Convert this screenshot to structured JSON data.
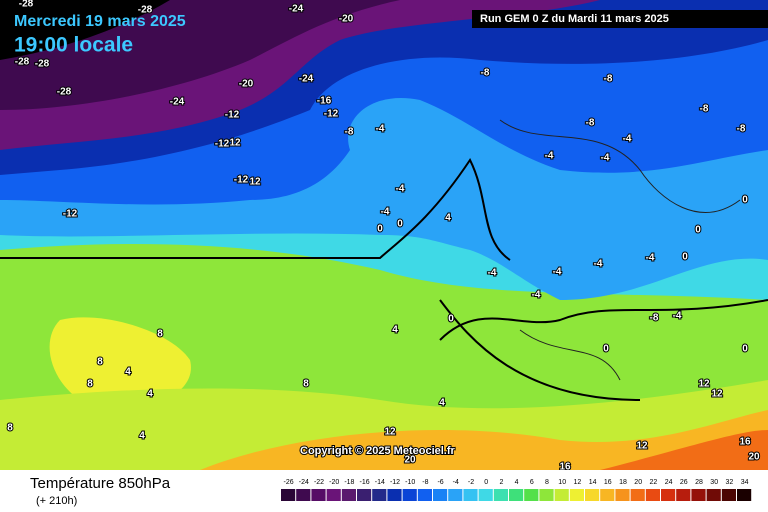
{
  "header": {
    "date": "Mercredi 19 mars 2025",
    "time": "19:00 locale",
    "run": "Run GEM 0 Z du Mardi 11 mars 2025"
  },
  "copyright": "Copyright © 2025 Meteociel.fr",
  "footer": {
    "title": "Température 850hPa",
    "lead": "(+ 210h)"
  },
  "legend": {
    "values": [
      -26,
      -24,
      -22,
      -20,
      -18,
      -16,
      -14,
      -12,
      -10,
      -8,
      -6,
      -4,
      -2,
      0,
      2,
      4,
      6,
      8,
      10,
      12,
      14,
      16,
      18,
      20,
      22,
      24,
      26,
      28,
      30,
      32,
      34
    ],
    "colors": [
      "#2a0636",
      "#3f0a4f",
      "#560d66",
      "#6a1478",
      "#5a1a6e",
      "#3a1f70",
      "#232a8a",
      "#0a2fb0",
      "#0b44d6",
      "#1160f0",
      "#1a82f5",
      "#2aa3f7",
      "#35c2f2",
      "#3fd9e6",
      "#3de0b0",
      "#3ee07a",
      "#54e04a",
      "#8ee63a",
      "#c4ec35",
      "#eef032",
      "#f7d82a",
      "#f8b623",
      "#f6931c",
      "#f26d16",
      "#e94b12",
      "#d6300f",
      "#b71d0d",
      "#951109",
      "#700b06",
      "#4b0603",
      "#1a0000"
    ]
  },
  "map_labels": [
    "-28",
    "-28",
    "-24",
    "-20",
    "-28",
    "-28",
    "-28",
    "-20",
    "-24",
    "-24",
    "-16",
    "-12",
    "-12",
    "-8",
    "-4",
    "-12",
    "12",
    "-12",
    "12",
    "-12",
    "-8",
    "-8",
    "-8",
    "-8",
    "-8",
    "-4",
    "-4",
    "-4",
    "-4",
    "-4",
    "0",
    "0",
    "4",
    "0",
    "0",
    "-4",
    "-4",
    "-4",
    "-4",
    "0",
    "-4",
    "0",
    "4",
    "-8",
    "-4",
    "0",
    "0",
    "8",
    "8",
    "4",
    "4",
    "8",
    "8",
    "4",
    "8",
    "4",
    "12",
    "12",
    "12",
    "16",
    "12",
    "20",
    "16",
    "20"
  ]
}
